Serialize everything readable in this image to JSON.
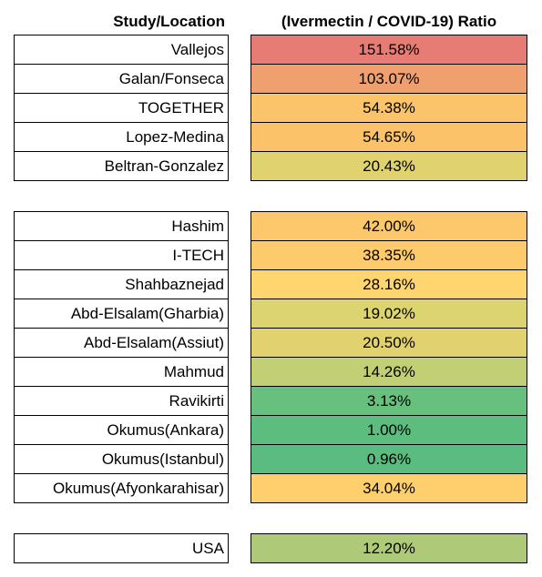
{
  "header": {
    "study": "Study/Location",
    "ratio": "(Ivermectin / COVID-19) Ratio"
  },
  "groups": [
    [
      {
        "study": "Vallejos",
        "ratio": "151.58%",
        "color": "#e67c73"
      },
      {
        "study": "Galan/Fonseca",
        "ratio": "103.07%",
        "color": "#f0a06e"
      },
      {
        "study": "TOGETHER",
        "ratio": "54.38%",
        "color": "#fbc36a"
      },
      {
        "study": "Lopez-Medina",
        "ratio": "54.65%",
        "color": "#fbc26a"
      },
      {
        "study": "Beltran-Gonzalez",
        "ratio": "20.43%",
        "color": "#e0d36f"
      }
    ],
    [
      {
        "study": "Hashim",
        "ratio": "42.00%",
        "color": "#fdc86b"
      },
      {
        "study": "I-TECH",
        "ratio": "38.35%",
        "color": "#fecb6c"
      },
      {
        "study": "Shahbaznejad",
        "ratio": "28.16%",
        "color": "#fed56e"
      },
      {
        "study": "Abd-Elsalam(Gharbia)",
        "ratio": "19.02%",
        "color": "#dcd470"
      },
      {
        "study": "Abd-Elsalam(Assiut)",
        "ratio": "20.50%",
        "color": "#e2d26f"
      },
      {
        "study": "Mahmud",
        "ratio": "14.26%",
        "color": "#c3cf74"
      },
      {
        "study": "Ravikirti",
        "ratio": "3.13%",
        "color": "#67c07e"
      },
      {
        "study": "Okumus(Ankara)",
        "ratio": "1.00%",
        "color": "#5dbd7f"
      },
      {
        "study": "Okumus(Istanbul)",
        "ratio": "0.96%",
        "color": "#5bbc7f"
      },
      {
        "study": "Okumus(Afyonkarahisar)",
        "ratio": "34.04%",
        "color": "#fed06d"
      }
    ],
    [
      {
        "study": "USA",
        "ratio": "12.20%",
        "color": "#aec977"
      }
    ]
  ]
}
